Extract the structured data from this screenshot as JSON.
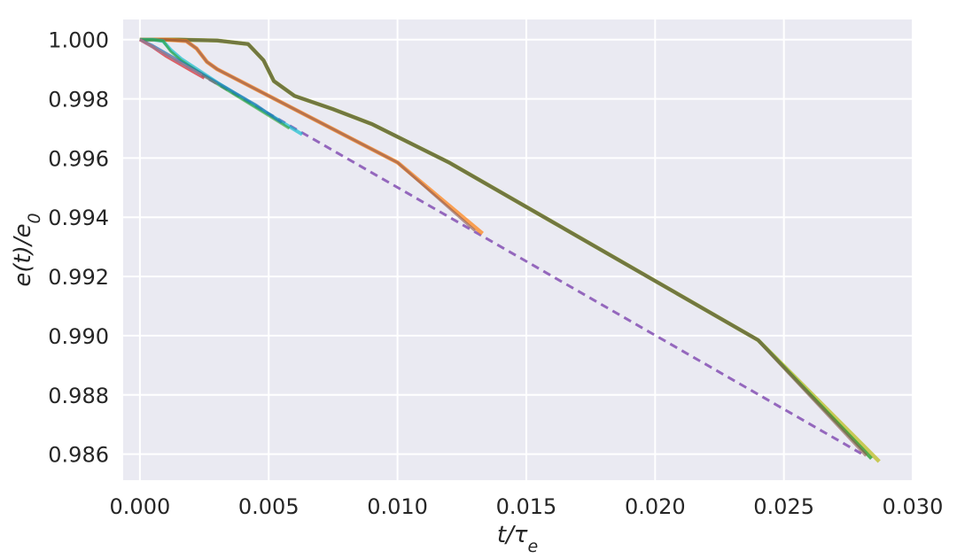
{
  "chart_data": {
    "type": "line",
    "title": "",
    "xlabel": "t/τe",
    "ylabel": "e(t)/e0",
    "xlim": [
      -0.00065,
      0.03
    ],
    "ylim": [
      0.98512,
      1.00068
    ],
    "grid": true,
    "background": "#eaeaf2",
    "x_ticks": [
      0.0,
      0.005,
      0.01,
      0.015,
      0.02,
      0.025,
      0.03
    ],
    "x_tick_labels": [
      "0.000",
      "0.005",
      "0.010",
      "0.015",
      "0.020",
      "0.025",
      "0.030"
    ],
    "y_ticks": [
      0.986,
      0.988,
      0.99,
      0.992,
      0.994,
      0.996,
      0.998,
      1.0
    ],
    "y_tick_labels": [
      "0.986",
      "0.988",
      "0.990",
      "0.992",
      "0.994",
      "0.996",
      "0.998",
      "1.000"
    ],
    "series": [
      {
        "color": "#9467bd",
        "style": "dashed",
        "width": 3,
        "x": [
          0.0,
          0.028
        ],
        "y": [
          1.0,
          0.98602
        ]
      },
      {
        "color": "#bcbd22",
        "style": "solid",
        "width": 4.5,
        "opacity": 0.75,
        "x": [
          0.0,
          0.0015,
          0.003,
          0.0042,
          0.0048,
          0.0052,
          0.006,
          0.0075,
          0.009,
          0.012,
          0.016,
          0.02,
          0.024,
          0.0287
        ],
        "y": [
          1.0,
          1.0,
          0.99997,
          0.99985,
          0.9993,
          0.9986,
          0.9981,
          0.99765,
          0.99715,
          0.99585,
          0.99385,
          0.99185,
          0.98985,
          0.98575
        ]
      },
      {
        "color": "#2ca02c",
        "style": "solid",
        "width": 4,
        "opacity": 0.8,
        "x": [
          0.0,
          0.0015,
          0.003,
          0.0042,
          0.0048,
          0.0052,
          0.006,
          0.0075,
          0.009,
          0.012,
          0.016,
          0.02,
          0.024,
          0.0284
        ],
        "y": [
          1.0,
          1.0,
          0.99997,
          0.99985,
          0.9993,
          0.9986,
          0.9981,
          0.99765,
          0.99715,
          0.99585,
          0.99385,
          0.99185,
          0.98985,
          0.98585
        ]
      },
      {
        "color": "#8c564b",
        "style": "solid",
        "width": 4,
        "opacity": 0.6,
        "x": [
          0.0,
          0.0015,
          0.003,
          0.0042,
          0.0048,
          0.0052,
          0.006,
          0.0075,
          0.009,
          0.012,
          0.016,
          0.02,
          0.024,
          0.0282
        ],
        "y": [
          1.0,
          1.0,
          0.99997,
          0.99985,
          0.9993,
          0.9986,
          0.9981,
          0.99765,
          0.99715,
          0.99585,
          0.99385,
          0.99185,
          0.98985,
          0.98595
        ]
      },
      {
        "color": "#ff7f0e",
        "style": "solid",
        "width": 4.5,
        "opacity": 0.7,
        "x": [
          0.0,
          0.001,
          0.0018,
          0.0022,
          0.0026,
          0.003,
          0.004,
          0.006,
          0.008,
          0.01,
          0.0133
        ],
        "y": [
          1.0,
          1.0,
          0.99995,
          0.9997,
          0.99925,
          0.999,
          0.99855,
          0.99765,
          0.99675,
          0.99585,
          0.99345
        ]
      },
      {
        "color": "#8c564b",
        "style": "solid",
        "width": 3,
        "opacity": 0.6,
        "x": [
          0.0,
          0.001,
          0.0018,
          0.0022,
          0.0026,
          0.003,
          0.004,
          0.006,
          0.008,
          0.01,
          0.013
        ],
        "y": [
          1.0,
          1.0,
          0.99995,
          0.9997,
          0.99925,
          0.999,
          0.99855,
          0.99765,
          0.99675,
          0.99585,
          0.99355
        ]
      },
      {
        "color": "#17becf",
        "style": "solid",
        "width": 4,
        "opacity": 0.7,
        "x": [
          0.0,
          0.0005,
          0.0009,
          0.0012,
          0.0016,
          0.003,
          0.0045,
          0.0063
        ],
        "y": [
          1.0,
          1.0,
          0.99995,
          0.99965,
          0.99935,
          0.99855,
          0.99775,
          0.9968
        ]
      },
      {
        "color": "#2ca02c",
        "style": "solid",
        "width": 3,
        "opacity": 0.6,
        "x": [
          0.0,
          0.0005,
          0.0009,
          0.0012,
          0.0016,
          0.003,
          0.0045,
          0.0058
        ],
        "y": [
          1.0,
          1.0,
          0.99995,
          0.9996,
          0.9993,
          0.9985,
          0.9977,
          0.997
        ]
      },
      {
        "color": "#1f77b4",
        "style": "solid",
        "width": 3,
        "opacity": 0.7,
        "x": [
          0.0,
          0.0005,
          0.001,
          0.002,
          0.003,
          0.0045,
          0.0055
        ],
        "y": [
          1.0,
          0.9998,
          0.99955,
          0.99905,
          0.99855,
          0.9978,
          0.9972
        ]
      },
      {
        "color": "#d62728",
        "style": "solid",
        "width": 3.5,
        "opacity": 0.7,
        "x": [
          0.0,
          0.0005,
          0.001,
          0.0015,
          0.002,
          0.0025
        ],
        "y": [
          1.0,
          0.99975,
          0.99945,
          0.9992,
          0.99895,
          0.9987
        ]
      },
      {
        "color": "#e377c2",
        "style": "solid",
        "width": 3,
        "opacity": 0.7,
        "x": [
          0.0,
          0.0005,
          0.001,
          0.0018,
          0.0024
        ],
        "y": [
          1.0,
          0.99975,
          0.9995,
          0.9991,
          0.9988
        ]
      },
      {
        "color": "#7f7f7f",
        "style": "solid",
        "width": 2.5,
        "opacity": 0.7,
        "x": [
          0.0,
          0.001,
          0.002,
          0.003
        ],
        "y": [
          1.0,
          0.9995,
          0.999,
          0.9985
        ]
      }
    ]
  }
}
